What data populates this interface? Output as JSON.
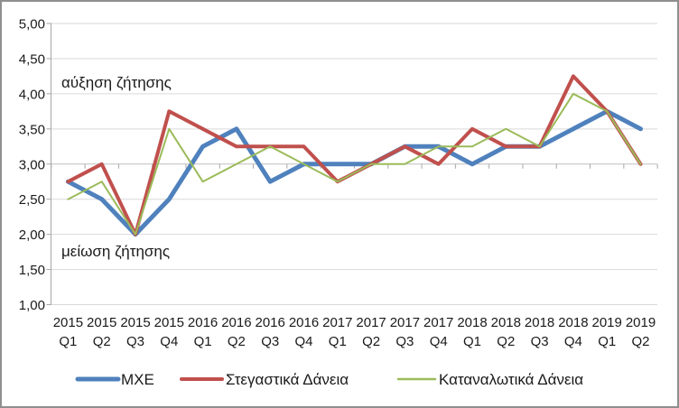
{
  "frame": {
    "background": "#ffffff",
    "border_color": "#8f8f8f",
    "gridline_color": "#d9d9d9",
    "axis_color": "#a6a6a6",
    "cross_axis_color": "#bfbfbf"
  },
  "chart_data": {
    "type": "line",
    "title": "",
    "xlabel": "",
    "ylabel": "",
    "ylim": [
      1.0,
      5.0
    ],
    "y_step": 0.5,
    "axis_crosses_at": 3.0,
    "grid": true,
    "legend_position": "bottom",
    "y_ticks": [
      {
        "value": 5.0,
        "label": "5,00"
      },
      {
        "value": 4.5,
        "label": "4,50"
      },
      {
        "value": 4.0,
        "label": "4,00"
      },
      {
        "value": 3.5,
        "label": "3,50"
      },
      {
        "value": 3.0,
        "label": "3,00"
      },
      {
        "value": 2.5,
        "label": "2,50"
      },
      {
        "value": 2.0,
        "label": "2,00"
      },
      {
        "value": 1.5,
        "label": "1,50"
      },
      {
        "value": 1.0,
        "label": "1,00"
      }
    ],
    "categories": [
      {
        "year": "2015",
        "quarter": "Q1"
      },
      {
        "year": "2015",
        "quarter": "Q2"
      },
      {
        "year": "2015",
        "quarter": "Q3"
      },
      {
        "year": "2015",
        "quarter": "Q4"
      },
      {
        "year": "2016",
        "quarter": "Q1"
      },
      {
        "year": "2016",
        "quarter": "Q2"
      },
      {
        "year": "2016",
        "quarter": "Q3"
      },
      {
        "year": "2016",
        "quarter": "Q4"
      },
      {
        "year": "2017",
        "quarter": "Q1"
      },
      {
        "year": "2017",
        "quarter": "Q2"
      },
      {
        "year": "2017",
        "quarter": "Q3"
      },
      {
        "year": "2017",
        "quarter": "Q4"
      },
      {
        "year": "2018",
        "quarter": "Q1"
      },
      {
        "year": "2018",
        "quarter": "Q2"
      },
      {
        "year": "2018",
        "quarter": "Q3"
      },
      {
        "year": "2018",
        "quarter": "Q4"
      },
      {
        "year": "2019",
        "quarter": "Q1"
      },
      {
        "year": "2019",
        "quarter": "Q2"
      }
    ],
    "series": [
      {
        "name": "ΜΧΕ",
        "color": "#4F81BD",
        "stroke_width": 5,
        "values": [
          2.75,
          2.5,
          2.0,
          2.5,
          3.25,
          3.5,
          2.75,
          3.0,
          3.0,
          3.0,
          3.25,
          3.25,
          3.0,
          3.25,
          3.25,
          3.5,
          3.75,
          3.5
        ]
      },
      {
        "name": "Στεγαστικά Δάνεια",
        "color": "#C0504D",
        "stroke_width": 4,
        "values": [
          2.75,
          3.0,
          2.0,
          3.75,
          3.5,
          3.25,
          3.25,
          3.25,
          2.75,
          3.0,
          3.25,
          3.0,
          3.5,
          3.25,
          3.25,
          4.25,
          3.75,
          3.0
        ]
      },
      {
        "name": "Καταναλωτικά Δάνεια",
        "color": "#9BBB59",
        "stroke_width": 2,
        "values": [
          2.5,
          2.75,
          2.0,
          3.5,
          2.75,
          3.0,
          3.25,
          3.0,
          2.75,
          3.0,
          3.0,
          3.25,
          3.25,
          3.5,
          3.25,
          4.0,
          3.75,
          3.0
        ]
      }
    ],
    "annotations": [
      {
        "text": "αύξηση ζήτησης"
      },
      {
        "text": "μείωση ζήτησης"
      }
    ]
  }
}
